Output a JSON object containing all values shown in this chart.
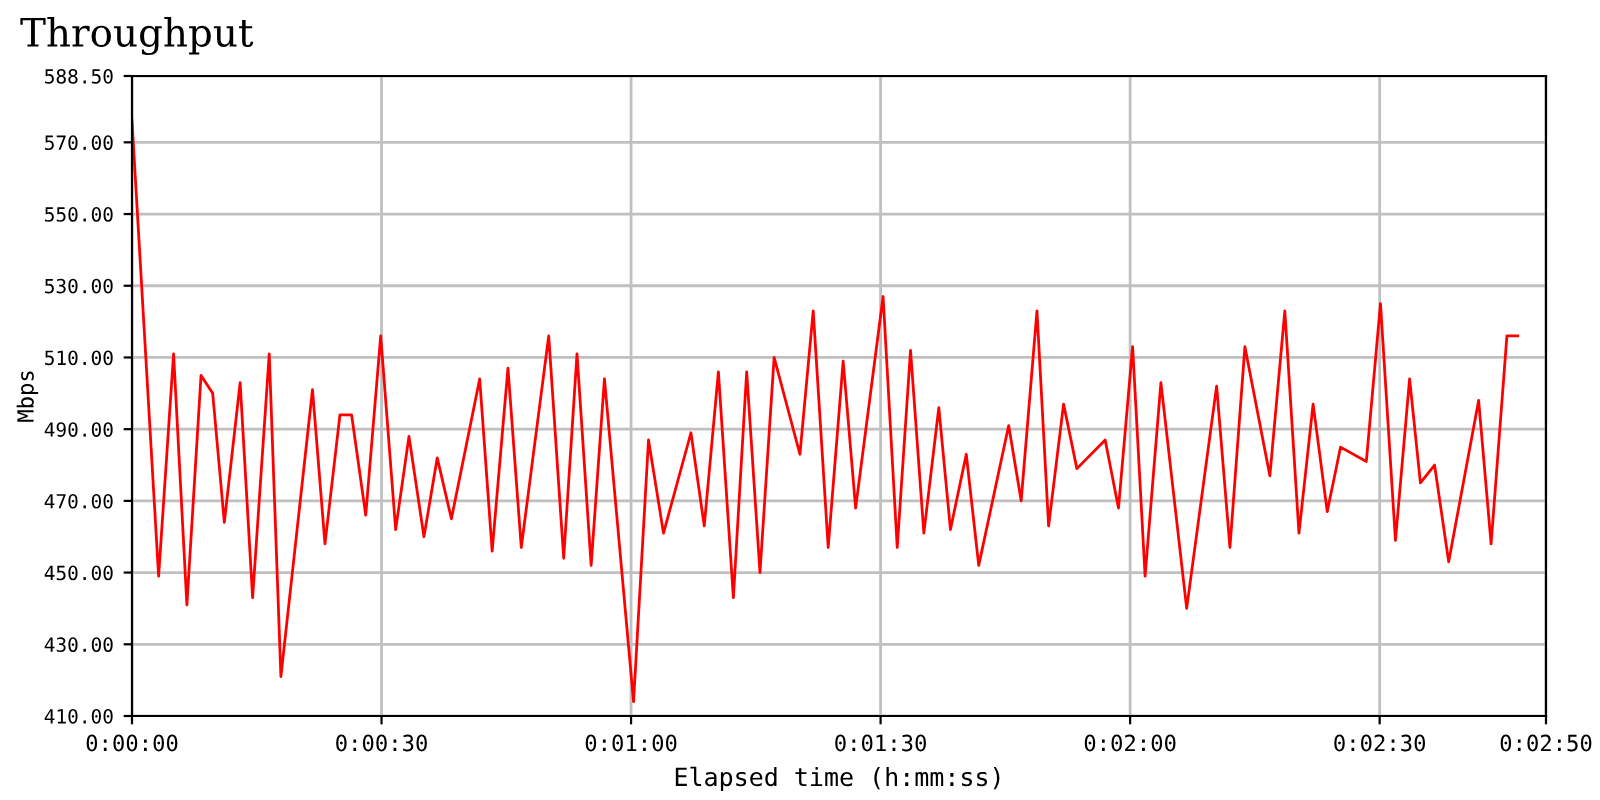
{
  "chart_data": {
    "type": "line",
    "title": "Throughput",
    "xlabel": "Elapsed time (h:mm:ss)",
    "ylabel": "Mbps",
    "x": [
      0,
      3.2,
      5.0,
      6.6,
      8.3,
      9.7,
      11.1,
      13.0,
      14.5,
      16.5,
      17.9,
      21.7,
      23.2,
      25.0,
      26.4,
      28.1,
      29.9,
      31.7,
      33.3,
      35.1,
      36.7,
      38.4,
      41.8,
      43.3,
      45.2,
      46.8,
      50.1,
      51.9,
      53.5,
      55.2,
      56.8,
      60.3,
      62.1,
      63.9,
      67.2,
      68.8,
      70.5,
      72.3,
      73.9,
      75.5,
      77.2,
      80.3,
      81.9,
      83.7,
      85.5,
      87.0,
      90.3,
      92.0,
      93.6,
      95.2,
      97.0,
      98.4,
      100.3,
      101.8,
      105.4,
      106.9,
      108.8,
      110.2,
      112.0,
      113.6,
      117.0,
      118.6,
      120.3,
      121.8,
      123.7,
      126.8,
      130.4,
      132.0,
      133.8,
      136.8,
      138.6,
      140.3,
      142.0,
      143.7,
      145.3,
      148.4,
      150.1,
      151.9,
      153.6,
      154.9,
      156.6,
      158.3,
      161.9,
      163.4,
      165.3,
      166.6
    ],
    "series": [
      {
        "color": "#ff0000",
        "values": [
          576,
          449,
          511,
          441,
          505,
          500,
          464,
          503,
          443,
          511,
          421,
          501,
          458,
          494,
          494,
          466,
          516,
          462,
          488,
          460,
          482,
          465,
          504,
          456,
          507,
          457,
          516,
          454,
          511,
          452,
          504,
          414,
          487,
          461,
          489,
          463,
          506,
          443,
          506,
          450,
          510,
          483,
          523,
          457,
          509,
          468,
          527,
          457,
          512,
          461,
          496,
          462,
          483,
          452,
          491,
          470,
          523,
          463,
          497,
          479,
          487,
          468,
          513,
          449,
          503,
          440,
          502,
          457,
          513,
          477,
          523,
          461,
          497,
          467,
          485,
          481,
          525,
          459,
          504,
          475,
          480,
          453,
          498,
          458,
          516,
          516
        ]
      }
    ],
    "xlim": [
      0,
      170
    ],
    "xticks": [
      {
        "value": 0,
        "label": "0:00:00"
      },
      {
        "value": 30,
        "label": "0:00:30"
      },
      {
        "value": 60,
        "label": "0:01:00"
      },
      {
        "value": 90,
        "label": "0:01:30"
      },
      {
        "value": 120,
        "label": "0:02:00"
      },
      {
        "value": 150,
        "label": "0:02:30"
      },
      {
        "value": 170,
        "label": "0:02:50"
      }
    ],
    "ylim": [
      410,
      588.5
    ],
    "yticks": [
      {
        "value": 410,
        "label": "410.00"
      },
      {
        "value": 430,
        "label": "430.00"
      },
      {
        "value": 450,
        "label": "450.00"
      },
      {
        "value": 470,
        "label": "470.00"
      },
      {
        "value": 490,
        "label": "490.00"
      },
      {
        "value": 510,
        "label": "510.00"
      },
      {
        "value": 530,
        "label": "530.00"
      },
      {
        "value": 550,
        "label": "550.00"
      },
      {
        "value": 570,
        "label": "570.00"
      },
      {
        "value": 588.5,
        "label": "588.50"
      }
    ],
    "grid": true,
    "legend": false,
    "marker": "none",
    "line_style": "solid"
  }
}
